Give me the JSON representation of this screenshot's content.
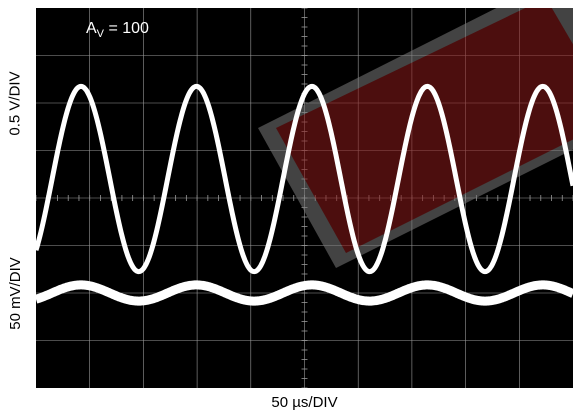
{
  "chart_data": {
    "type": "line",
    "title": "",
    "annotation": {
      "prefix": "A",
      "subscript": "V",
      "suffix": " = 100"
    },
    "xlabel": "50 µs/DIV",
    "ylabels": [
      "0.5 V/DIV",
      "50 mV/DIV"
    ],
    "grid": {
      "on": true,
      "x_divisions": 10,
      "y_divisions": 8,
      "minor_ticks_per_div": 5
    },
    "colors": {
      "background": "#000000",
      "trace": "#ffffff",
      "grid": "#9a9a9a",
      "watermark": "#8b1a1a"
    },
    "series": [
      {
        "role": "output",
        "waveform": "sine",
        "period_div": 2.15,
        "amplitude_div": 1.95,
        "center_div": 3.6,
        "phase_div": 0.3,
        "stroke": 5
      },
      {
        "role": "input",
        "waveform": "sine",
        "period_div": 2.15,
        "amplitude_div": 0.17,
        "center_div": 6.0,
        "phase_div": 0.3,
        "stroke": 9
      }
    ]
  }
}
